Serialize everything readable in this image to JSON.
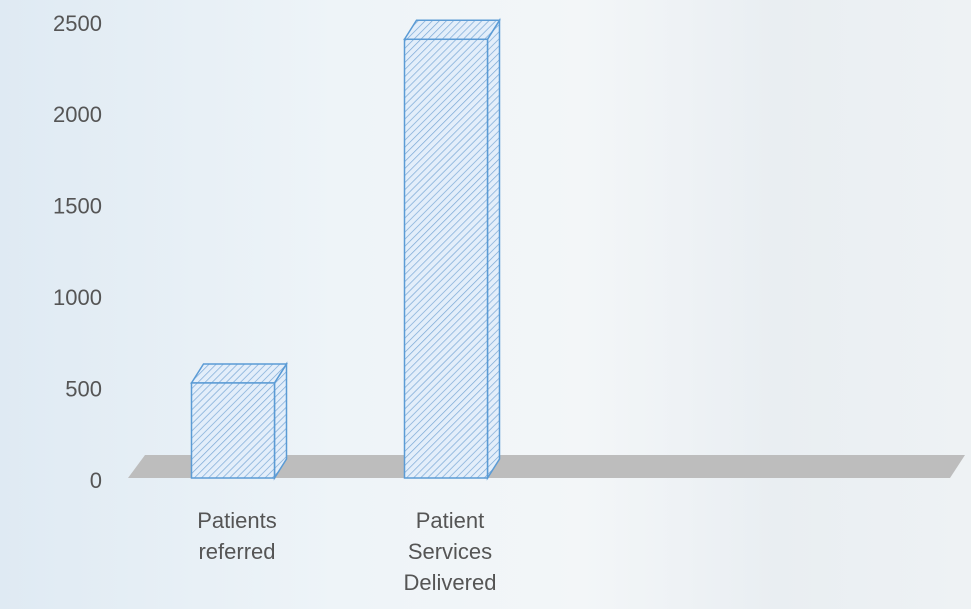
{
  "chart_data": {
    "type": "bar",
    "categories": [
      "Patients referred",
      "Patient Services Delivered",
      null,
      null
    ],
    "values": [
      520,
      2400,
      null,
      null
    ],
    "color": "#5b9bd5",
    "ylim": [
      0,
      2500
    ],
    "yticks": [
      0,
      500,
      1000,
      1500,
      2000,
      2500
    ],
    "grid": false
  }
}
